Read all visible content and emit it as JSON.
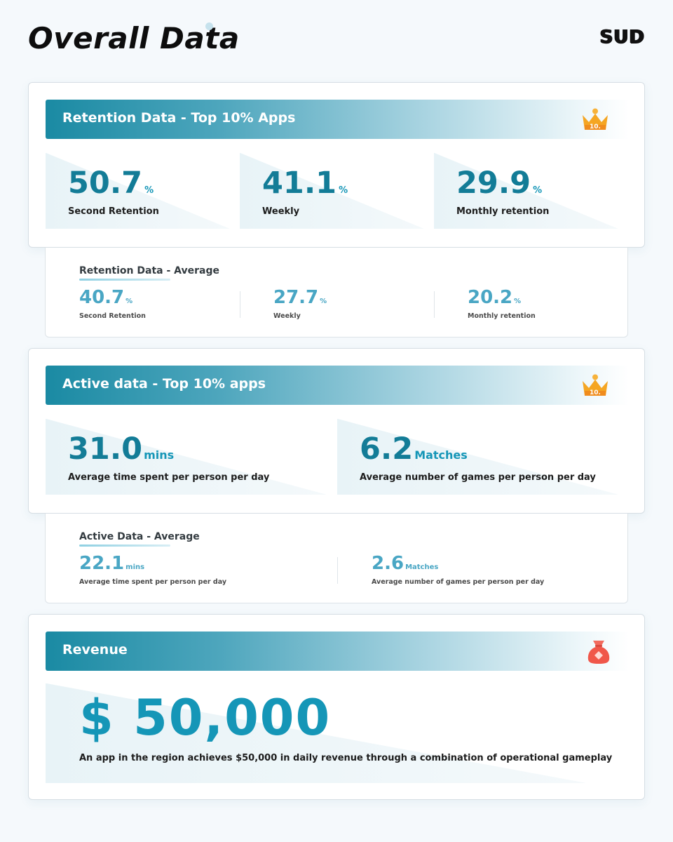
{
  "header": {
    "title": "Overall Data",
    "brand": "SUD"
  },
  "colors": {
    "accent": "#1596b7",
    "accent_dark": "#137c97",
    "accent_soft": "#49a6c4",
    "crown": "#f5a623",
    "bag": "#f0574a"
  },
  "retention_top": {
    "title": "Retention Data - Top 10% Apps",
    "badge_icon": "crown-icon",
    "badge_text": "10.",
    "stats": [
      {
        "value": "50.7",
        "unit": "%",
        "label": "Second Retention"
      },
      {
        "value": "41.1",
        "unit": "%",
        "label": "Weekly"
      },
      {
        "value": "29.9",
        "unit": "%",
        "label": "Monthly retention"
      }
    ]
  },
  "retention_avg": {
    "title": "Retention Data - Average",
    "stats": [
      {
        "value": "40.7",
        "unit": "%",
        "label": "Second Retention"
      },
      {
        "value": "27.7",
        "unit": "%",
        "label": "Weekly"
      },
      {
        "value": "20.2",
        "unit": "%",
        "label": "Monthly retention"
      }
    ]
  },
  "active_top": {
    "title": "Active data - Top 10% apps",
    "badge_icon": "crown-icon",
    "badge_text": "10.",
    "stats": [
      {
        "value": "31.0",
        "unit": "mins",
        "label": "Average time spent per person per day"
      },
      {
        "value": "6.2",
        "unit": "Matches",
        "label": "Average number of games per person per day"
      }
    ]
  },
  "active_avg": {
    "title": "Active Data - Average",
    "stats": [
      {
        "value": "22.1",
        "unit": "mins",
        "label": "Average time spent per person per day"
      },
      {
        "value": "2.6",
        "unit": "Matches",
        "label": "Average number of games per person per day"
      }
    ]
  },
  "revenue": {
    "title": "Revenue",
    "badge_icon": "money-bag-icon",
    "value": "$ 50,000",
    "description": "An app in the region achieves $50,000 in daily revenue through a combination of operational gameplay"
  }
}
